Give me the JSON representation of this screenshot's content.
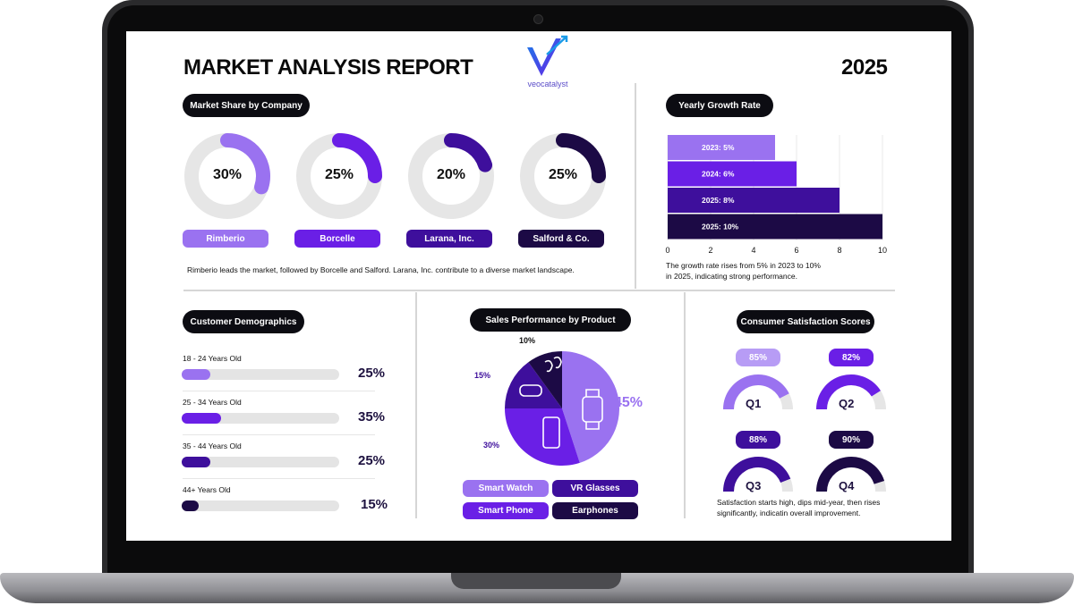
{
  "header": {
    "title": "MARKET ANALYSIS REPORT",
    "year": "2025",
    "logo_text": "veocatalyst"
  },
  "colors": {
    "c1": "#9a72f0",
    "c2": "#6a1fe6",
    "c3": "#3e0f9c",
    "c4": "#1c0a45",
    "track": "#e6e6e6"
  },
  "market_share": {
    "heading": "Market Share by Company",
    "companies": [
      {
        "name": "Rimberio",
        "percent": "30%"
      },
      {
        "name": "Borcelle",
        "percent": "25%"
      },
      {
        "name": "Larana, Inc.",
        "percent": "20%"
      },
      {
        "name": "Salford & Co.",
        "percent": "25%"
      }
    ],
    "note": "Rimberio leads the market, followed by Borcelle and Salford. Larana, Inc. contribute to a diverse market landscape."
  },
  "growth": {
    "heading": "Yearly Growth Rate",
    "note_line1": "The growth rate  rises from 5% in 2023 to 10%",
    "note_line2": "in 2025, indicating strong performance."
  },
  "demographics": {
    "heading": "Customer Demographics",
    "groups": [
      {
        "label": "18 - 24 Years Old",
        "percent": "25%"
      },
      {
        "label": "25 - 34 Years Old",
        "percent": "35%"
      },
      {
        "label": "35 - 44 Years Old",
        "percent": "25%"
      },
      {
        "label": "44+ Years Old",
        "percent": "15%"
      }
    ]
  },
  "sales": {
    "heading": "Sales Performance by Product",
    "legend": [
      "Smart Watch",
      "VR Glasses",
      "Smart Phone",
      "Earphones"
    ]
  },
  "satisfaction": {
    "heading": "Consumer Satisfaction Scores",
    "note_line1": "Satisfaction starts high, dips mid-year, then rises",
    "note_line2": "significantly, indicatin overall improvement."
  },
  "chart_data": [
    {
      "type": "pie",
      "title": "Market Share by Company",
      "categories": [
        "Rimberio",
        "Borcelle",
        "Larana, Inc.",
        "Salford & Co."
      ],
      "values": [
        30,
        25,
        20,
        25
      ]
    },
    {
      "type": "bar",
      "title": "Yearly Growth Rate",
      "orientation": "horizontal",
      "categories": [
        "2023",
        "2024",
        "2025",
        "2025"
      ],
      "labels": [
        "2023: 5%",
        "2024: 6%",
        "2025: 8%",
        "2025: 10%"
      ],
      "values": [
        5,
        6,
        8,
        10
      ],
      "xlim": [
        0,
        10
      ],
      "xticks": [
        "0",
        "2",
        "4",
        "6",
        "8",
        "10"
      ],
      "grid": true
    },
    {
      "type": "bar",
      "title": "Customer Demographics",
      "orientation": "horizontal",
      "categories": [
        "18 - 24 Years Old",
        "25 - 34 Years Old",
        "35 - 44 Years Old",
        "44+ Years Old"
      ],
      "values": [
        25,
        35,
        25,
        15
      ]
    },
    {
      "type": "pie",
      "title": "Sales Performance by Product",
      "categories": [
        "Smart Watch",
        "Smart Phone",
        "VR Glasses",
        "Earphones"
      ],
      "values": [
        45,
        30,
        15,
        10
      ],
      "labels": [
        "45%",
        "30%",
        "15%",
        "10%"
      ]
    },
    {
      "type": "bar",
      "title": "Consumer Satisfaction Scores",
      "categories": [
        "Q1",
        "Q2",
        "Q3",
        "Q4"
      ],
      "values": [
        85,
        82,
        88,
        90
      ],
      "labels": [
        "85%",
        "82%",
        "88%",
        "90%"
      ]
    }
  ]
}
